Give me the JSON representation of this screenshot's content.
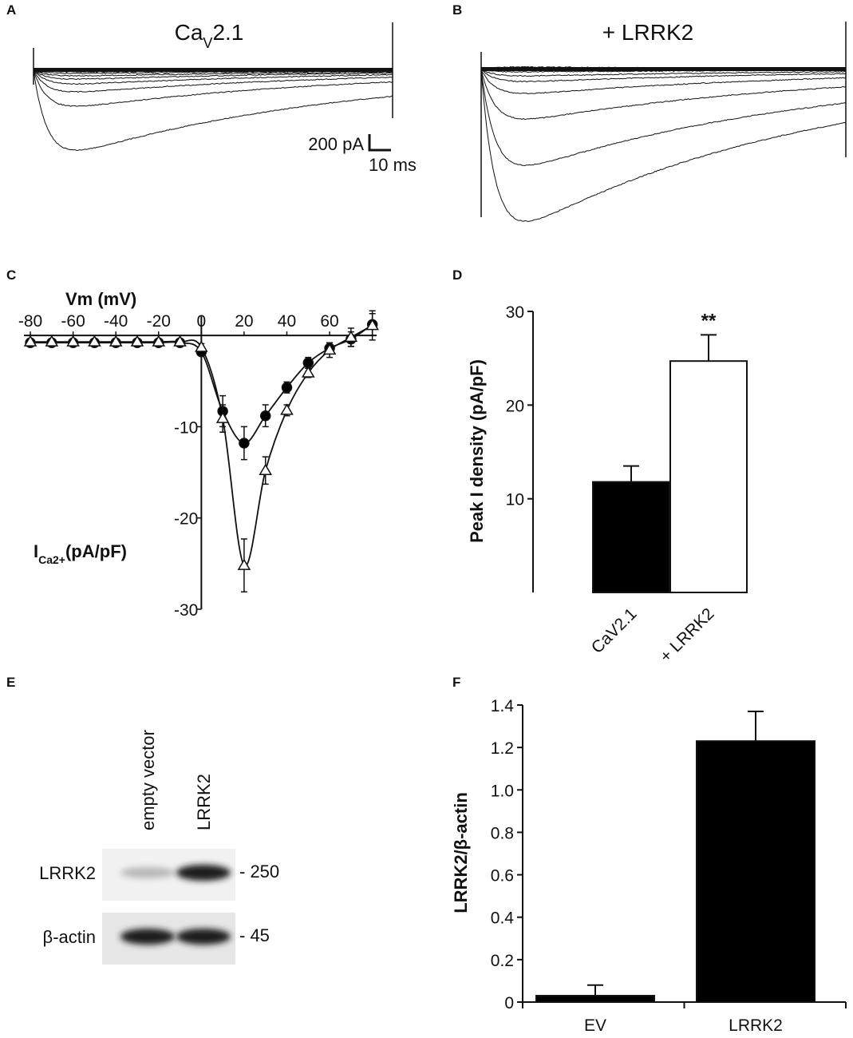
{
  "chart_data": [
    {
      "type": "traces",
      "panel": "A",
      "title": [
        "Ca",
        "V",
        "2.1"
      ],
      "scale_bar": [
        "200 pA",
        "10 ms"
      ]
    },
    {
      "type": "traces",
      "panel": "B",
      "title": [
        "+ LRRK2"
      ]
    },
    {
      "type": "line",
      "panel": "C",
      "x_label": "Vm (mV)",
      "y_label": [
        "I",
        "Ca2+",
        "(pA/pF)"
      ],
      "x": [
        -80,
        -70,
        -60,
        -50,
        -40,
        -30,
        -20,
        -10,
        0,
        10,
        20,
        30,
        40,
        50,
        60,
        70,
        80
      ],
      "series": [
        {
          "marker": "circle",
          "color": "#000000",
          "values": [
            -0.8,
            -0.8,
            -0.8,
            -0.8,
            -0.8,
            -0.8,
            -0.8,
            -0.8,
            -1.8,
            -8.3,
            -11.8,
            -8.8,
            -5.7,
            -3.0,
            -1.4,
            -0.4,
            1.2
          ],
          "errors": [
            0.2,
            0.2,
            0.2,
            0.2,
            0.2,
            0.2,
            0.2,
            0.2,
            0.4,
            1.7,
            1.8,
            1.2,
            0.6,
            0.6,
            0.6,
            0.8,
            1.2
          ]
        },
        {
          "marker": "triangle",
          "color": "#ffffff",
          "values": [
            -0.7,
            -0.7,
            -0.7,
            -0.7,
            -0.7,
            -0.7,
            -0.7,
            -0.7,
            -1.3,
            -9.1,
            -25.2,
            -14.8,
            -8.2,
            -4.1,
            -1.6,
            -0.2,
            1.1
          ],
          "errors": [
            0.2,
            0.2,
            0.2,
            0.2,
            0.2,
            0.2,
            0.2,
            0.2,
            0.4,
            1.5,
            2.9,
            1.5,
            0.6,
            0.5,
            0.8,
            1.0,
            1.6
          ]
        }
      ],
      "xlim": [
        -83,
        82
      ],
      "ylim": [
        -30,
        2.2
      ],
      "xticks": [
        -80,
        -60,
        -40,
        -20,
        0,
        20,
        40,
        60
      ],
      "yticks": [
        -10,
        -20,
        -30
      ]
    },
    {
      "type": "bar",
      "panel": "D",
      "y_label": "Peak I density (pA/pF)",
      "categories": [
        "CaV2.1",
        "+ LRRK2"
      ],
      "values": [
        11.8,
        24.7
      ],
      "errors": [
        1.7,
        2.8
      ],
      "colors": [
        "#000000",
        "#ffffff"
      ],
      "annotations": [
        {
          "category": "+ LRRK2",
          "text": "**"
        }
      ],
      "ylim": [
        0,
        30
      ],
      "yticks": [
        10,
        20,
        30
      ],
      "rotate_labels": true,
      "x_axis": false
    },
    {
      "type": "blot",
      "panel": "E",
      "lanes": [
        "empty vector",
        "LRRK2"
      ],
      "rows": [
        {
          "name": "LRRK2",
          "marker": "- 250"
        },
        {
          "name": "β-actin",
          "marker": "- 45"
        }
      ]
    },
    {
      "type": "bar",
      "panel": "F",
      "y_label": "LRRK2/β-actin",
      "categories": [
        "EV",
        "LRRK2"
      ],
      "values": [
        0.03,
        1.23
      ],
      "errors": [
        0.05,
        0.14
      ],
      "colors": [
        "#000000",
        "#000000"
      ],
      "ylim": [
        0,
        1.4
      ],
      "yticks": [
        0,
        0.2,
        0.4,
        0.6,
        0.8,
        {
          "value": 1,
          "label": "1.0"
        },
        1.2,
        1.4
      ],
      "rotate_labels": false,
      "x_axis": true
    }
  ]
}
